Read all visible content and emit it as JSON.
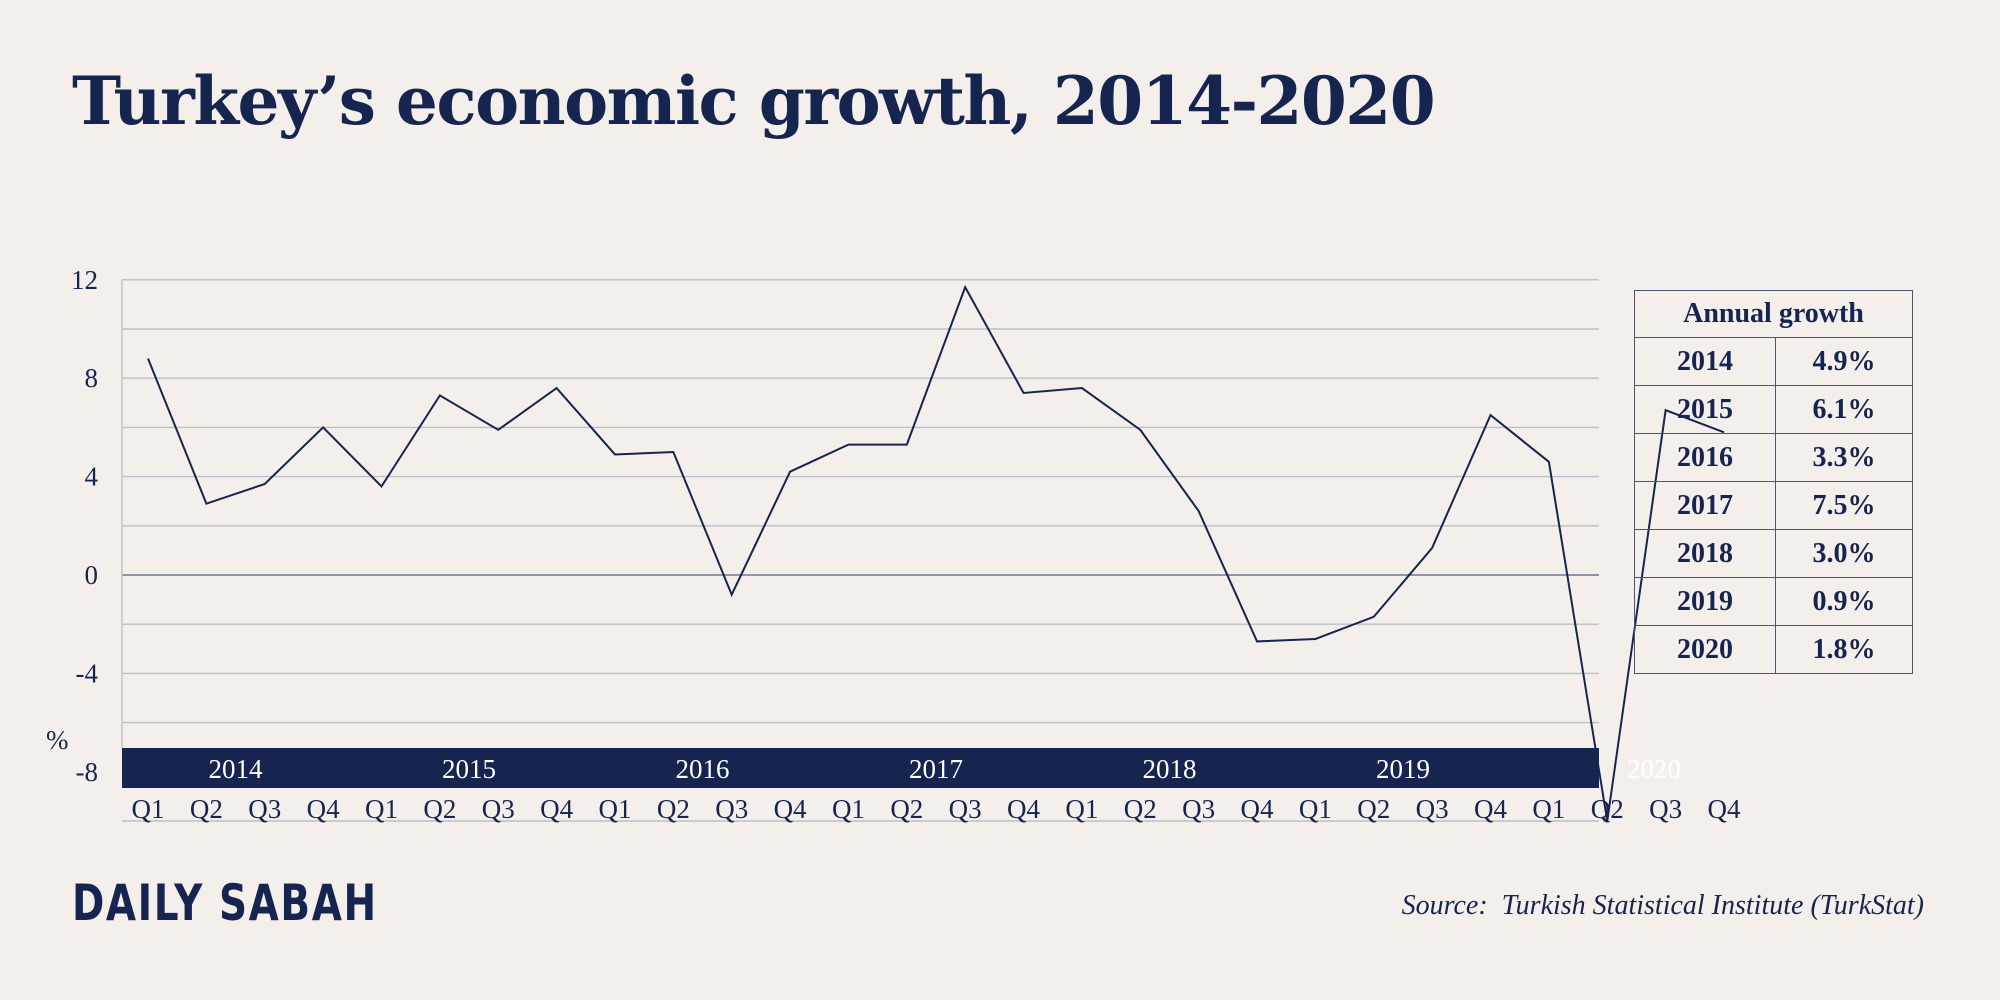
{
  "title": "Turkey’s economic growth, 2014-2020",
  "chart_data": {
    "type": "line",
    "title": "Turkey’s economic growth, 2014-2020",
    "ylabel": "%",
    "ylim": [
      -10,
      12
    ],
    "yticks": [
      "12",
      "8",
      "4",
      "0",
      "-4",
      "-8"
    ],
    "grid": true,
    "years": [
      "2014",
      "2015",
      "2016",
      "2017",
      "2018",
      "2019",
      "2020"
    ],
    "quarters": [
      "Q1",
      "Q2",
      "Q3",
      "Q4"
    ],
    "x": [
      "2014 Q1",
      "2014 Q2",
      "2014 Q3",
      "2014 Q4",
      "2015 Q1",
      "2015 Q2",
      "2015 Q3",
      "2015 Q4",
      "2016 Q1",
      "2016 Q2",
      "2016 Q3",
      "2016 Q4",
      "2017 Q1",
      "2017 Q2",
      "2017 Q3",
      "2017 Q4",
      "2018 Q1",
      "2018 Q2",
      "2018 Q3",
      "2018 Q4",
      "2019 Q1",
      "2019 Q2",
      "2019 Q3",
      "2019 Q4",
      "2020 Q1",
      "2020 Q2",
      "2020 Q3",
      "2020 Q4"
    ],
    "values": [
      8.8,
      2.9,
      3.7,
      6.0,
      3.6,
      7.3,
      5.9,
      7.6,
      4.9,
      5.0,
      -0.8,
      4.2,
      5.3,
      5.3,
      11.7,
      7.4,
      7.6,
      5.9,
      2.6,
      -2.7,
      -2.6,
      -1.7,
      1.1,
      6.5,
      4.6,
      -10.0,
      6.7,
      5.8
    ],
    "line_color": "#15254f",
    "band_color": "#15254f"
  },
  "table": {
    "header": "Annual growth",
    "rows": [
      {
        "year": "2014",
        "value": "4.9%"
      },
      {
        "year": "2015",
        "value": "6.1%"
      },
      {
        "year": "2016",
        "value": "3.3%"
      },
      {
        "year": "2017",
        "value": "7.5%"
      },
      {
        "year": "2018",
        "value": "3.0%"
      },
      {
        "year": "2019",
        "value": "0.9%"
      },
      {
        "year": "2020",
        "value": "1.8%"
      }
    ]
  },
  "logo": "DAILY SABAH",
  "source": "Source:  Turkish Statistical Institute (TurkStat)"
}
